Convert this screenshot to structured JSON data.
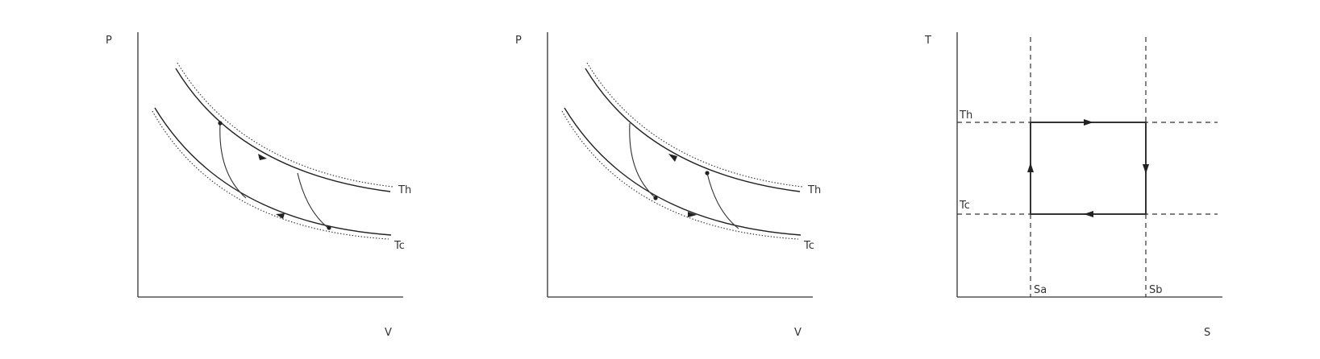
{
  "diagrams": [
    {
      "y_label": "P",
      "x_label": "V",
      "curve_labels": {
        "hot": "Th",
        "cold": "Tc"
      }
    },
    {
      "y_label": "P",
      "x_label": "V",
      "curve_labels": {
        "hot": "Th",
        "cold": "Tc"
      }
    },
    {
      "y_label": "T",
      "x_label": "S",
      "temp_labels": {
        "hot": "Th",
        "cold": "Tc"
      },
      "entropy_labels": {
        "a": "Sa",
        "b": "Sb"
      }
    }
  ]
}
